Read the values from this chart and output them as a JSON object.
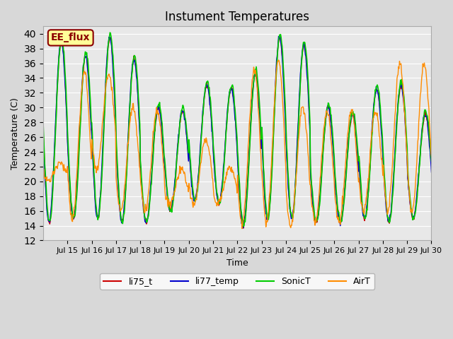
{
  "title": "Instument Temperatures",
  "xlabel": "Time",
  "ylabel": "Temperature (C)",
  "ylim": [
    12,
    41
  ],
  "yticks": [
    12,
    14,
    16,
    18,
    20,
    22,
    24,
    26,
    28,
    30,
    32,
    34,
    36,
    38,
    40
  ],
  "annotation_text": "EE_flux",
  "annotation_color": "#8B0000",
  "annotation_bg": "#FFFF99",
  "bg_color": "#E8E8E8",
  "line_colors": {
    "li75_t": "#CC0000",
    "li77_temp": "#0000CC",
    "SonicT": "#00CC00",
    "AirT": "#FF8C00"
  },
  "legend_labels": [
    "li75_t",
    "li77_temp",
    "SonicT",
    "AirT"
  ],
  "xtick_labels": [
    "Jul 15",
    "Jul 16",
    "Jul 17",
    "Jul 18",
    "Jul 19",
    "Jul 20",
    "Jul 21",
    "Jul 22",
    "Jul 23",
    "Jul 24",
    "Jul 25",
    "Jul 26",
    "Jul 27",
    "Jul 28",
    "Jul 29",
    "Jul 30"
  ],
  "n_days": 16,
  "points_per_day": 48
}
